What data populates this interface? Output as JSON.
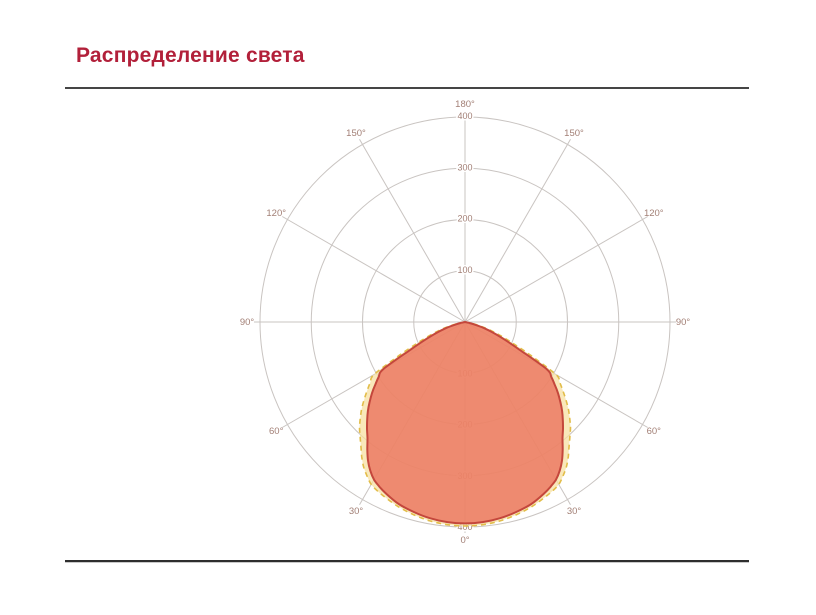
{
  "slide": {
    "title": "Распределение света",
    "title_color": "#b2203a"
  },
  "chart_data": {
    "type": "polar",
    "title": "Распределение света",
    "axis_max": 400,
    "circle_values": [
      100,
      200,
      300,
      400
    ],
    "radial_ticks": [
      "100",
      "200",
      "300",
      "400"
    ],
    "spoke_step_deg": 30,
    "angle_labels": [
      {
        "gamma": 0,
        "text": "0°"
      },
      {
        "gamma": 30,
        "text": "30°"
      },
      {
        "gamma": 60,
        "text": "60°"
      },
      {
        "gamma": 90,
        "text": "90°"
      },
      {
        "gamma": 120,
        "text": "120°"
      },
      {
        "gamma": 150,
        "text": "150°"
      },
      {
        "gamma": 180,
        "text": "180°"
      }
    ],
    "grid": {
      "line_color": "#c9c4c1",
      "label_color": "#a27f75",
      "legend": "none",
      "background": "#ffffff"
    },
    "series": [
      {
        "name": "dashed-curve",
        "style": "dashed",
        "stroke": "#e2bd49",
        "fill": "#f6dfa0",
        "fill_opacity": 0.72,
        "stroke_width": 1.6,
        "dash": "5 4",
        "gamma_deg": [
          0,
          5,
          10,
          15,
          20,
          25,
          27.5,
          30,
          32.5,
          35,
          37.5,
          40,
          42.5,
          45,
          47.5,
          50,
          52.5,
          55,
          57.5,
          60,
          63,
          66,
          69,
          72,
          75,
          78,
          81
        ],
        "values": [
          398,
          397,
          394,
          389,
          383,
          375,
          371,
          366,
          356,
          345,
          331,
          316,
          303,
          291,
          277,
          263,
          248,
          233,
          219,
          205,
          145,
          103,
          74,
          52,
          32,
          15,
          0
        ]
      },
      {
        "name": "solid-curve",
        "style": "solid",
        "stroke": "#c4473c",
        "fill": "#ea6f5b",
        "fill_opacity": 0.78,
        "stroke_width": 2,
        "dash": null,
        "gamma_deg": [
          0,
          5,
          10,
          15,
          20,
          25,
          27.5,
          30,
          32.5,
          35,
          37.5,
          40,
          42.5,
          45,
          47.5,
          50,
          52.5,
          55,
          57.5,
          60,
          63,
          66,
          69,
          72,
          75,
          78,
          80
        ],
        "values": [
          393,
          392,
          389,
          384,
          378,
          368,
          362,
          355,
          344,
          330,
          313,
          296,
          283,
          270,
          257,
          243,
          229,
          214,
          200,
          184,
          120,
          85,
          60,
          40,
          20,
          6,
          0
        ]
      }
    ]
  }
}
